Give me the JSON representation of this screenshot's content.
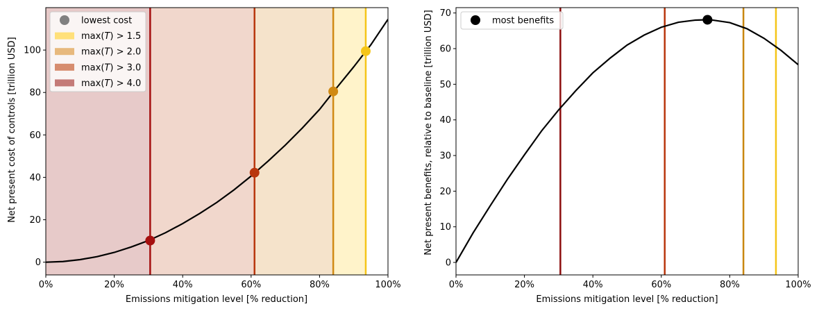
{
  "chart_data": [
    {
      "type": "line",
      "xlabel": "Emissions mitigation level [% reduction]",
      "ylabel": "Net present cost of controls [trillion USD]",
      "xlim": [
        0,
        100
      ],
      "ylim": [
        -6,
        120
      ],
      "xticks": [
        0,
        20,
        40,
        60,
        80,
        100
      ],
      "xtick_labels": [
        "0%",
        "20%",
        "40%",
        "60%",
        "80%",
        "100%"
      ],
      "yticks": [
        0,
        20,
        40,
        60,
        80,
        100
      ],
      "ytick_labels": [
        "0",
        "20",
        "40",
        "60",
        "80",
        "100"
      ],
      "curve": {
        "color": "#000000",
        "x": [
          0,
          5,
          10,
          15,
          20,
          25,
          30,
          35,
          40,
          45,
          50,
          55,
          60,
          65,
          70,
          75,
          80,
          85,
          90,
          95,
          100
        ],
        "y": [
          0,
          0.3,
          1.2,
          2.6,
          4.6,
          7.2,
          10.2,
          13.9,
          18.2,
          23.0,
          28.2,
          34.1,
          40.6,
          47.7,
          55.2,
          63.3,
          72.0,
          82.2,
          92.1,
          102.5,
          114.5
        ]
      },
      "regions": [
        {
          "label": "max(T) > 4.0",
          "x0": 0,
          "x1": 30.5,
          "color": "#c47b78",
          "opacity": 0.4
        },
        {
          "label": "max(T) > 3.0",
          "x0": 30.5,
          "x1": 61,
          "color": "#d68c6e",
          "opacity": 0.35
        },
        {
          "label": "max(T) > 2.0",
          "x0": 61,
          "x1": 84,
          "color": "#e7b97d",
          "opacity": 0.4
        },
        {
          "label": "max(T) > 1.5",
          "x0": 84,
          "x1": 93.5,
          "color": "#ffe07a",
          "opacity": 0.4
        }
      ],
      "vlines": [
        {
          "x": 30.5,
          "color": "#a50f0f"
        },
        {
          "x": 61,
          "color": "#b8360d"
        },
        {
          "x": 84,
          "color": "#d08a14"
        },
        {
          "x": 93.5,
          "color": "#f5c518"
        }
      ],
      "points": [
        {
          "x": 30.5,
          "y": 10.2,
          "color": "#a50f0f"
        },
        {
          "x": 61,
          "y": 42.2,
          "color": "#b8360d"
        },
        {
          "x": 84,
          "y": 80.5,
          "color": "#d08a14"
        },
        {
          "x": 93.5,
          "y": 99.5,
          "color": "#f5c518"
        }
      ],
      "legend": {
        "placement": "top-left",
        "entries": [
          {
            "kind": "marker",
            "label": "lowest cost",
            "color": "#808080"
          },
          {
            "kind": "patch",
            "label_prefix": "max(",
            "label_var": "T",
            "label_suffix": ") > 1.5",
            "color": "#ffe07a"
          },
          {
            "kind": "patch",
            "label_prefix": "max(",
            "label_var": "T",
            "label_suffix": ") > 2.0",
            "color": "#e7b97d"
          },
          {
            "kind": "patch",
            "label_prefix": "max(",
            "label_var": "T",
            "label_suffix": ") > 3.0",
            "color": "#d68c6e"
          },
          {
            "kind": "patch",
            "label_prefix": "max(",
            "label_var": "T",
            "label_suffix": ") > 4.0",
            "color": "#c47b78"
          }
        ]
      }
    },
    {
      "type": "line",
      "xlabel": "Emissions mitigation level [% reduction]",
      "ylabel": "Net present benefits, relative to baseline [trillion USD]",
      "xlim": [
        0,
        100
      ],
      "ylim": [
        -3.5,
        71.5
      ],
      "xticks": [
        0,
        20,
        40,
        60,
        80,
        100
      ],
      "xtick_labels": [
        "0%",
        "20%",
        "40%",
        "60%",
        "80%",
        "100%"
      ],
      "yticks": [
        0,
        10,
        20,
        30,
        40,
        50,
        60,
        70
      ],
      "ytick_labels": [
        "0",
        "10",
        "20",
        "30",
        "40",
        "50",
        "60",
        "70"
      ],
      "curve": {
        "color": "#000000",
        "x": [
          0,
          5,
          10,
          15,
          20,
          25,
          30,
          35,
          40,
          45,
          50,
          55,
          60,
          65,
          70,
          73.5,
          75,
          80,
          85,
          90,
          95,
          100
        ],
        "y": [
          0,
          8.3,
          15.9,
          23.3,
          30.2,
          36.9,
          42.8,
          48.2,
          53.2,
          57.3,
          61.0,
          63.8,
          66.0,
          67.4,
          68.0,
          68.1,
          68.0,
          67.3,
          65.6,
          62.9,
          59.5,
          55.5
        ]
      },
      "vlines": [
        {
          "x": 30.5,
          "color": "#8b0d0d"
        },
        {
          "x": 61,
          "color": "#b8360d"
        },
        {
          "x": 84,
          "color": "#c8860f"
        },
        {
          "x": 93.5,
          "color": "#f5c518"
        }
      ],
      "points": [
        {
          "x": 73.5,
          "y": 68.1,
          "color": "#000000"
        }
      ],
      "legend": {
        "placement": "top-left",
        "entries": [
          {
            "kind": "marker",
            "label": "most benefits",
            "color": "#000000"
          }
        ]
      }
    }
  ]
}
